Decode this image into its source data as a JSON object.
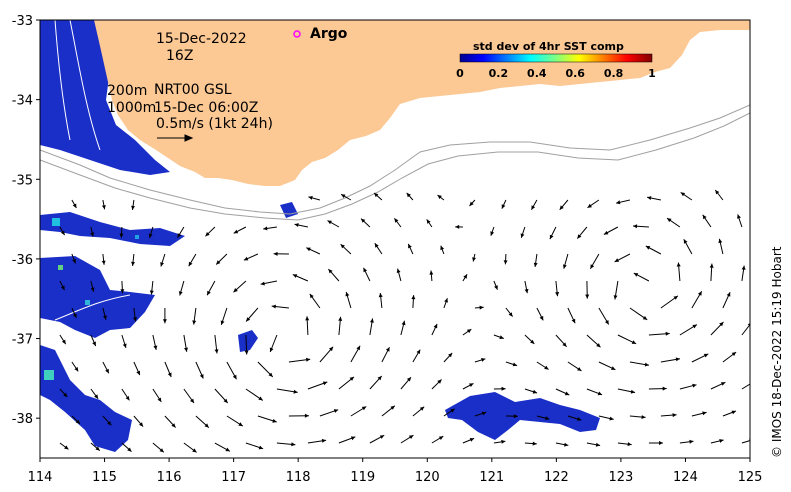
{
  "map": {
    "x_ticks": [
      "114",
      "115",
      "116",
      "117",
      "118",
      "119",
      "120",
      "121",
      "122",
      "123",
      "124",
      "125"
    ],
    "y_ticks": [
      "-33",
      "-34",
      "-35",
      "-36",
      "-37",
      "-38"
    ],
    "x_range": [
      114,
      125
    ],
    "y_range": [
      -38.5,
      -33
    ]
  },
  "annotations": {
    "date": "15-Dec-2022",
    "hour": "16Z",
    "contour_200": "200m",
    "contour_1000": "1000m",
    "product": "NRT00 GSL",
    "product_time": "15-Dec 06:00Z",
    "scale_label": "0.5m/s (1kt 24h)",
    "argo_label": "Argo"
  },
  "colorbar": {
    "title": "std dev of 4hr SST comp",
    "ticks": [
      "0",
      "0.2",
      "0.4",
      "0.6",
      "0.8",
      "1"
    ],
    "colormap": "jet"
  },
  "credit": "© IMOS 18-Dec-2022 15:19 Hobart",
  "colors": {
    "land": "#fcc894",
    "argo": "#ff00ff",
    "sst_low": "#1428c8",
    "contour": "#a0a0a0"
  }
}
